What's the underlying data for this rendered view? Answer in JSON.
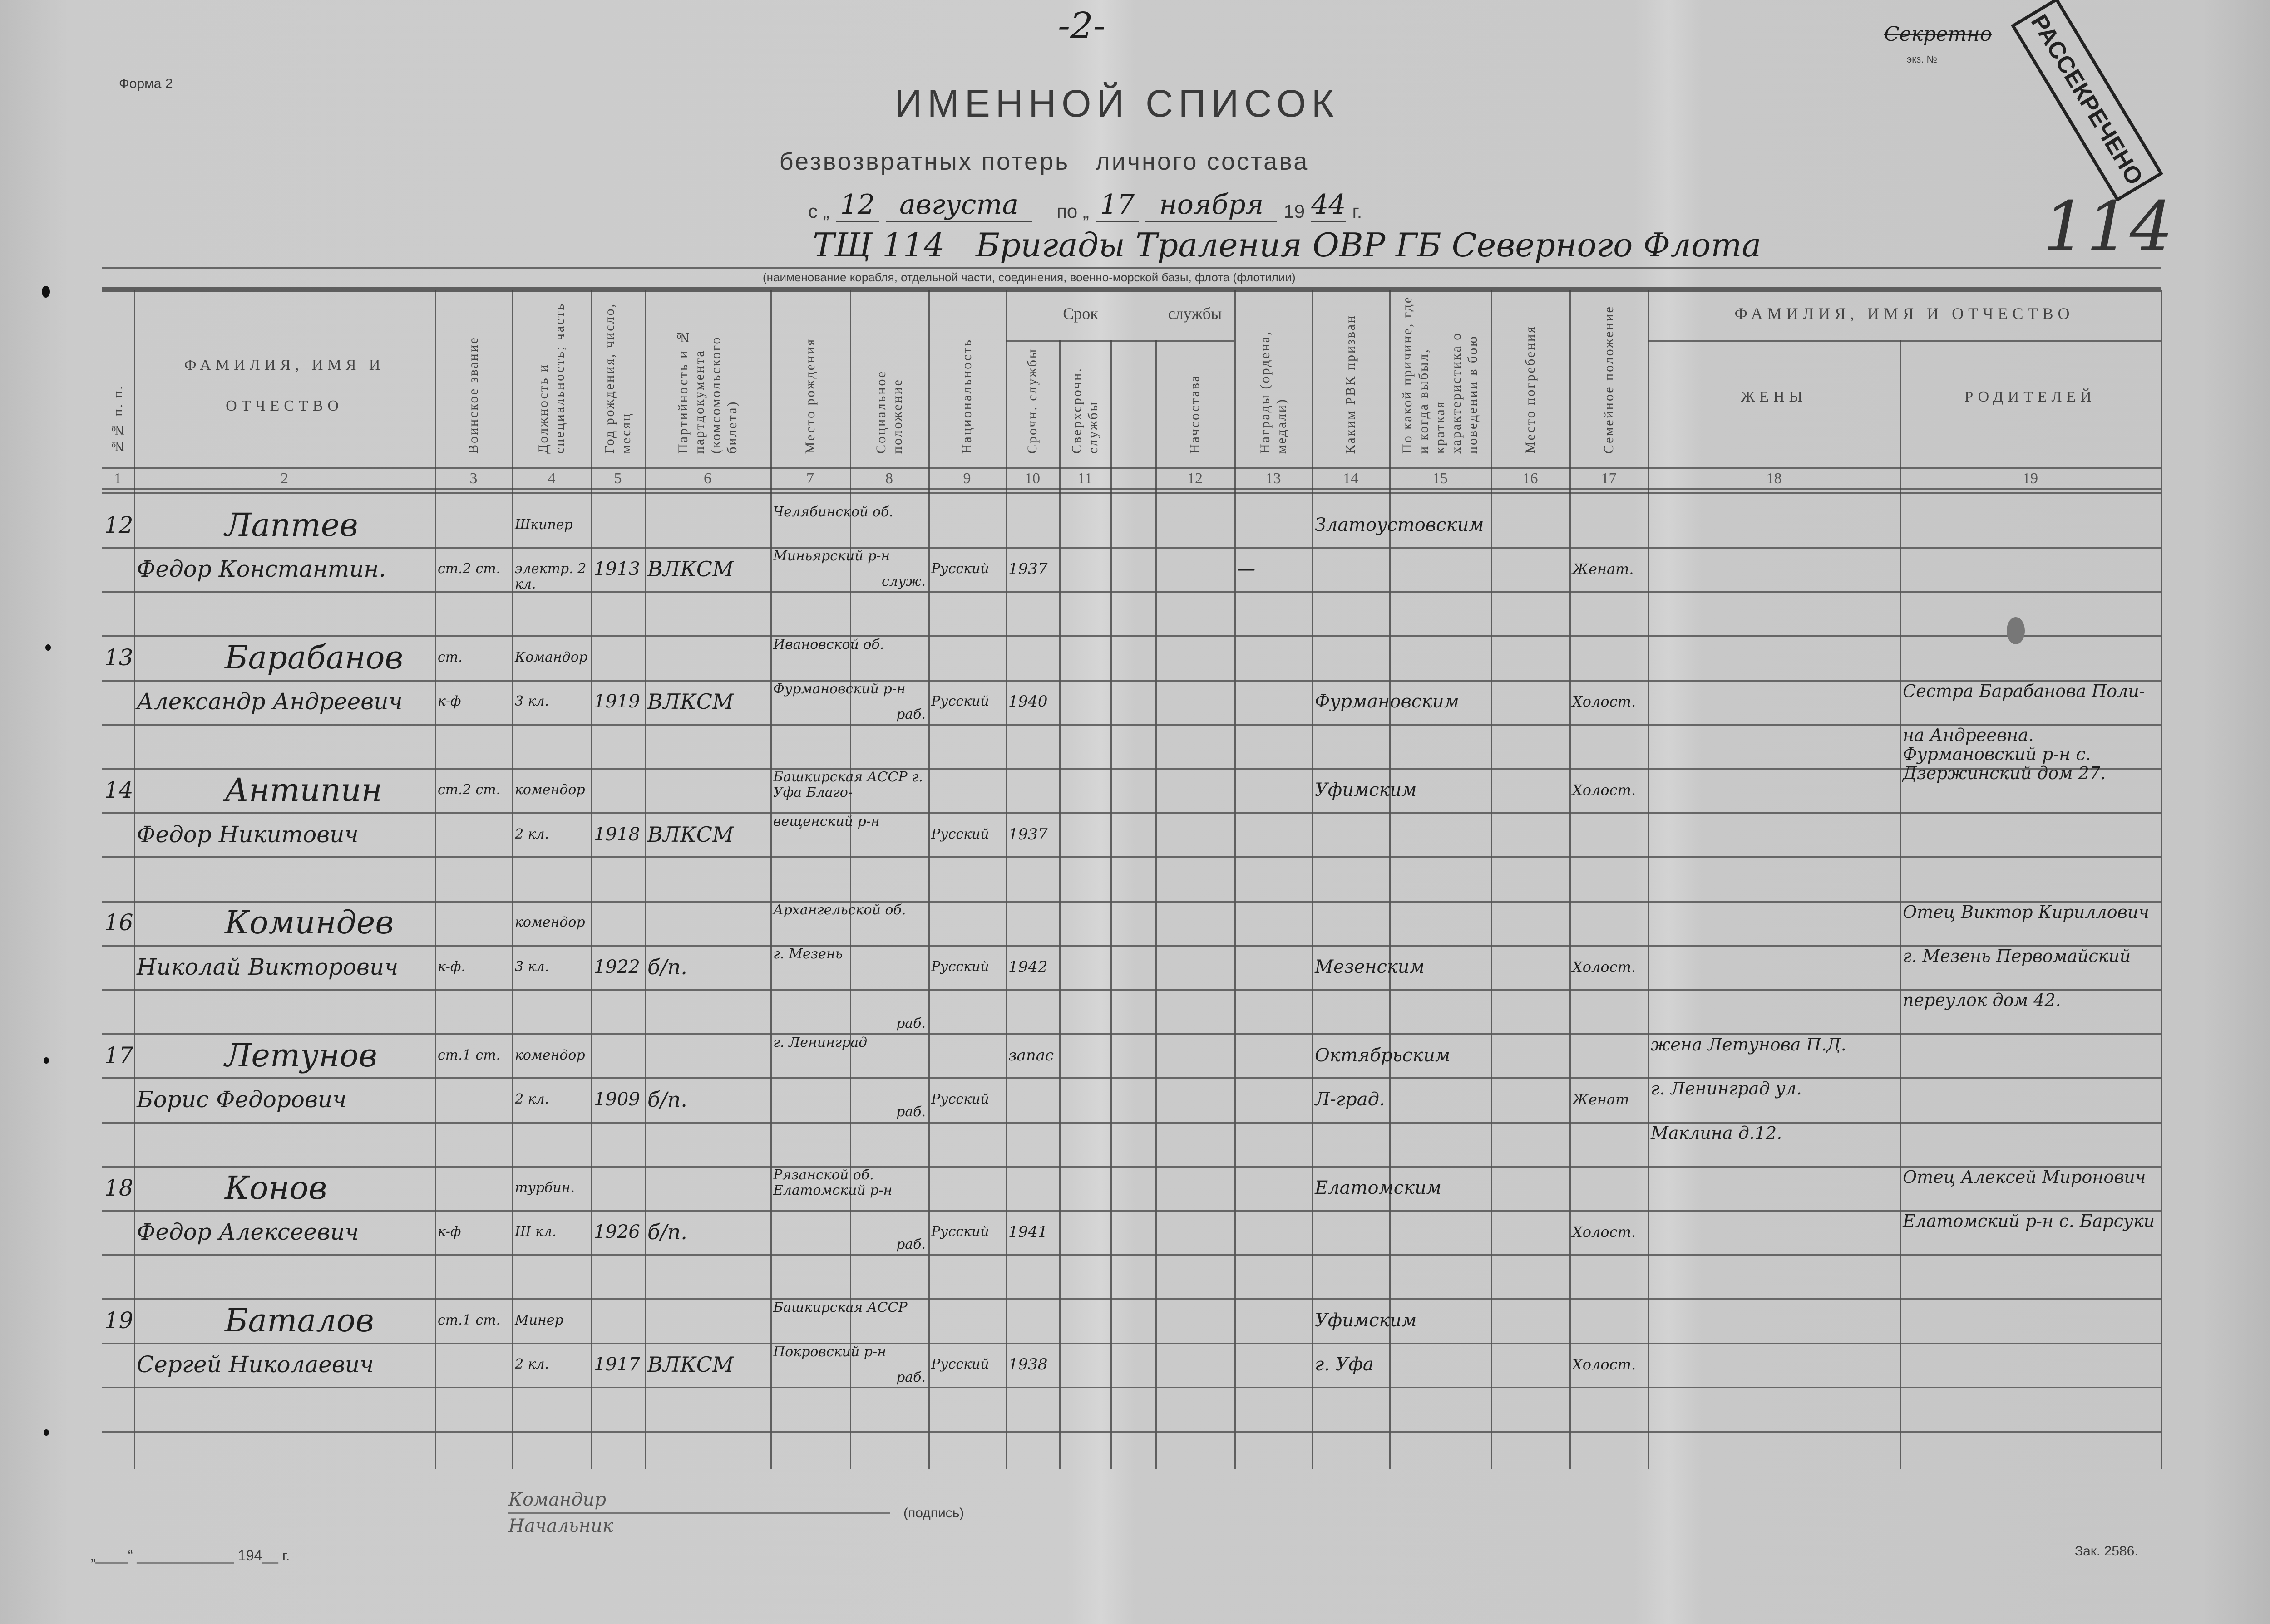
{
  "page_number": "-2-",
  "form_label": "Форма 2",
  "stamp": {
    "text": "РАССЕКРЕЧЕНО",
    "secret_label": "Секретно",
    "copy_label": "экз. №",
    "number": "114"
  },
  "title": "ИМЕННОЙ СПИСОК",
  "subtitle": "безвозвратных потерь   личного состава",
  "period": {
    "from_prefix": "с „",
    "from_day": "12",
    "from_month": "августа",
    "to_prefix": "по „",
    "to_day": "17",
    "to_month": "ноября",
    "year_prefix": "19",
    "year": "44",
    "year_suffix": "г."
  },
  "unit": "ТЩ 114   Бригады Траления ОВР ГБ Северного Флота",
  "unit_caption": "(наименование корабля, отдельной части, соединения, военно-морской базы, флота (флотилии)",
  "header": {
    "group_service_a": "Срок",
    "group_service_b": "службы",
    "group_relatives": "ФАМИЛИЯ, ИМЯ И ОТЧЕСТВО",
    "columns": [
      {
        "key": "num",
        "label": "№№ п. п.",
        "number": "1"
      },
      {
        "key": "name",
        "label": "ФАМИЛИЯ, ИМЯ И ОТЧЕСТВО",
        "number": "2"
      },
      {
        "key": "rank",
        "label": "Воинское звание",
        "number": "3"
      },
      {
        "key": "position",
        "label": "Должность и специальность; часть",
        "number": "4"
      },
      {
        "key": "birth_year",
        "label": "Год рождения, число, месяц",
        "number": "5"
      },
      {
        "key": "party",
        "label": "Партийность и № партдокумента (комсомольского билета)",
        "number": "6"
      },
      {
        "key": "birthplace",
        "label": "Место рождения",
        "number": "7"
      },
      {
        "key": "social",
        "label": "Социальное положение",
        "number": "8"
      },
      {
        "key": "nationality",
        "label": "Национальность",
        "number": "9"
      },
      {
        "key": "service_regular",
        "label": "Срочн. службы",
        "number": "10"
      },
      {
        "key": "service_extra",
        "label": "Сверхсрочн. службы",
        "number": "11"
      },
      {
        "key": "blank",
        "label": "",
        "number": ""
      },
      {
        "key": "officer",
        "label": "Начсостава",
        "number": "12"
      },
      {
        "key": "awards",
        "label": "Награды (ордена, медали)",
        "number": "13"
      },
      {
        "key": "rvk",
        "label": "Каким РВК призван",
        "number": "14"
      },
      {
        "key": "reason",
        "label": "По какой причине, где и когда выбыл, краткая характеристика о поведении в бою",
        "number": "15"
      },
      {
        "key": "burial",
        "label": "Место погребения",
        "number": "16"
      },
      {
        "key": "family",
        "label": "Семейное положение",
        "number": "17"
      },
      {
        "key": "wife",
        "label": "ЖЕНЫ",
        "number": "18"
      },
      {
        "key": "parents",
        "label": "РОДИТЕЛЕЙ",
        "number": "19"
      }
    ]
  },
  "entries": [
    {
      "row1": {
        "num": "12",
        "name": "Лаптев",
        "position": "Шкипер",
        "birthplace": "Челябинской об.",
        "rvk": "Златоустовским"
      },
      "row2": {
        "name": "Федор Константин.",
        "rank": "ст.2 ст.",
        "position": "электр. 2 кл.",
        "birth_year": "1913",
        "party": "ВЛКСМ",
        "birthplace": "Миньярский р-н",
        "social": "служ.",
        "nationality": "Русский",
        "service_regular": "1937",
        "awards": "—",
        "family": "Женат."
      },
      "row3": {}
    },
    {
      "row1": {
        "num": "13",
        "name": "Барабанов",
        "rank": "ст.",
        "position": "Командор",
        "birthplace": "Ивановской об."
      },
      "row2": {
        "name": "Александр Андреевич",
        "rank": "к-ф",
        "position": "3 кл.",
        "birth_year": "1919",
        "party": "ВЛКСМ",
        "birthplace": "Фурмановский р-н",
        "social": "раб.",
        "nationality": "Русский",
        "service_regular": "1940",
        "rvk": "Фурмановским",
        "family": "Холост.",
        "parents": "Сестра Барабанова Поли-"
      },
      "row3": {
        "parents": "на Андреевна. Фурмановский р-н с. Дзержинский дом 27."
      }
    },
    {
      "row1": {
        "num": "14",
        "name": "Антипин",
        "rank": "ст.2 ст.",
        "position": "комендор",
        "birthplace": "Башкирская АССР г. Уфа Благо-",
        "rvk": "Уфимским",
        "family": "Холост."
      },
      "row2": {
        "name": "Федор Никитович",
        "position": "2 кл.",
        "birth_year": "1918",
        "party": "ВЛКСМ",
        "birthplace": "вещенский р-н",
        "nationality": "Русский",
        "service_regular": "1937"
      },
      "row3": {}
    },
    {
      "row1": {
        "num": "16",
        "name": "Коминдев",
        "position": "комендор",
        "birthplace": "Архангельской об.",
        "parents": "Отец Виктор Кириллович"
      },
      "row2": {
        "name": "Николай Викторович",
        "rank": "к-ф.",
        "position": "3 кл.",
        "birth_year": "1922",
        "party": "б/п.",
        "birthplace": "г. Мезень",
        "nationality": "Русский",
        "service_regular": "1942",
        "rvk": "Мезенским",
        "family": "Холост.",
        "parents": "г. Мезень Первомайский"
      },
      "row3": {
        "social": "раб.",
        "parents": "переулок дом 42."
      }
    },
    {
      "row1": {
        "num": "17",
        "name": "Летунов",
        "rank": "ст.1 ст.",
        "position": "комендор",
        "birthplace": "г. Ленинград",
        "service_regular": "запас",
        "rvk": "Октябрьским",
        "wife": "жена Летунова П.Д."
      },
      "row2": {
        "name": "Борис Федорович",
        "position": "2 кл.",
        "birth_year": "1909",
        "party": "б/п.",
        "social": "раб.",
        "nationality": "Русский",
        "rvk": "Л-град.",
        "family": "Женат",
        "wife": "г. Ленинград ул."
      },
      "row3": {
        "wife": "Маклина д.12."
      }
    },
    {
      "row1": {
        "num": "18",
        "name": "Конов",
        "position": "турбин.",
        "birthplace": "Рязанской об. Елатомский р-н",
        "rvk": "Елатомским",
        "parents": "Отец Алексей Миронович"
      },
      "row2": {
        "name": "Федор Алексеевич",
        "rank": "к-ф",
        "position": "III кл.",
        "birth_year": "1926",
        "party": "б/п.",
        "social": "раб.",
        "nationality": "Русский",
        "service_regular": "1941",
        "family": "Холост.",
        "parents": "Елатомский р-н с. Барсуки"
      },
      "row3": {}
    },
    {
      "row1": {
        "num": "19",
        "name": "Баталов",
        "rank": "ст.1 ст.",
        "position": "Минер",
        "birthplace": "Башкирская АССР",
        "rvk": "Уфимским"
      },
      "row2": {
        "name": "Сергей Николаевич",
        "position": "2 кл.",
        "birth_year": "1917",
        "party": "ВЛКСМ",
        "birthplace": "Покровский р-н",
        "social": "раб.",
        "nationality": "Русский",
        "service_regular": "1938",
        "rvk": "г. Уфа",
        "family": "Холост."
      },
      "row3": {}
    }
  ],
  "footer": {
    "commander_label": "Командир",
    "chief_label": "Начальник",
    "signature_label": "(подпись)",
    "date_line": "„____“ ____________ 194__ г.",
    "order_number": "Зак. 2586."
  }
}
